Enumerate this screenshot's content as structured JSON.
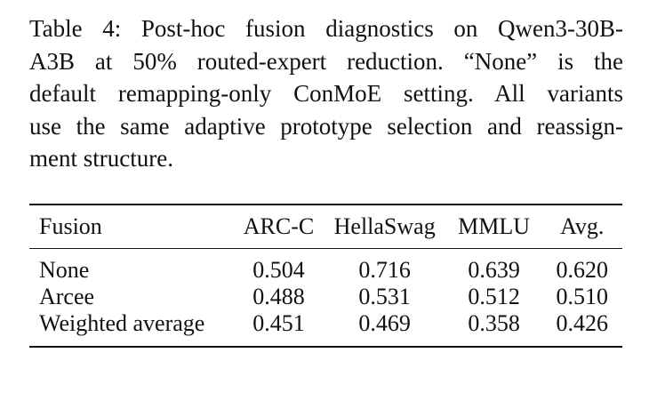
{
  "caption": {
    "lines": [
      "Table 4: Post-hoc fusion diagnostics on Qwen3-30B-",
      "A3B at 50% routed-expert reduction. “None” is the",
      "default remapping-only ConMoE setting. All variants",
      "use the same adaptive prototype selection and reassign-",
      "ment structure."
    ]
  },
  "table": {
    "headers": [
      "Fusion",
      "ARC-C",
      "HellaSwag",
      "MMLU",
      "Avg."
    ],
    "rows": [
      [
        "None",
        "0.504",
        "0.716",
        "0.639",
        "0.620"
      ],
      [
        "Arcee",
        "0.488",
        "0.531",
        "0.512",
        "0.510"
      ],
      [
        "Weighted average",
        "0.451",
        "0.469",
        "0.358",
        "0.426"
      ]
    ]
  }
}
